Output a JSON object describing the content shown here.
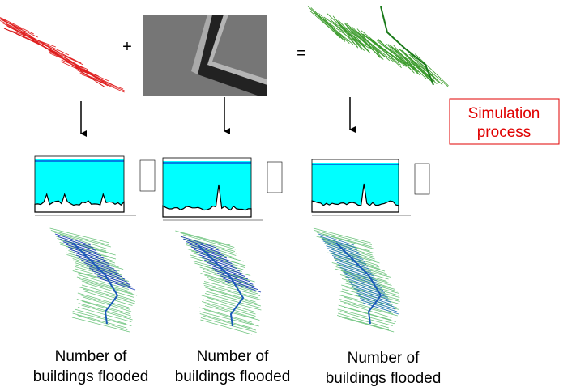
{
  "operator_plus": "+",
  "operator_equals": "=",
  "label": {
    "lines": [
      "Simulation",
      "process"
    ]
  },
  "results": [
    {
      "caption": [
        "Number of",
        "buildings flooded"
      ]
    },
    {
      "caption": [
        "Number of",
        "buildings flooded"
      ]
    },
    {
      "caption": [
        "Number of",
        "buildings flooded"
      ]
    }
  ]
}
